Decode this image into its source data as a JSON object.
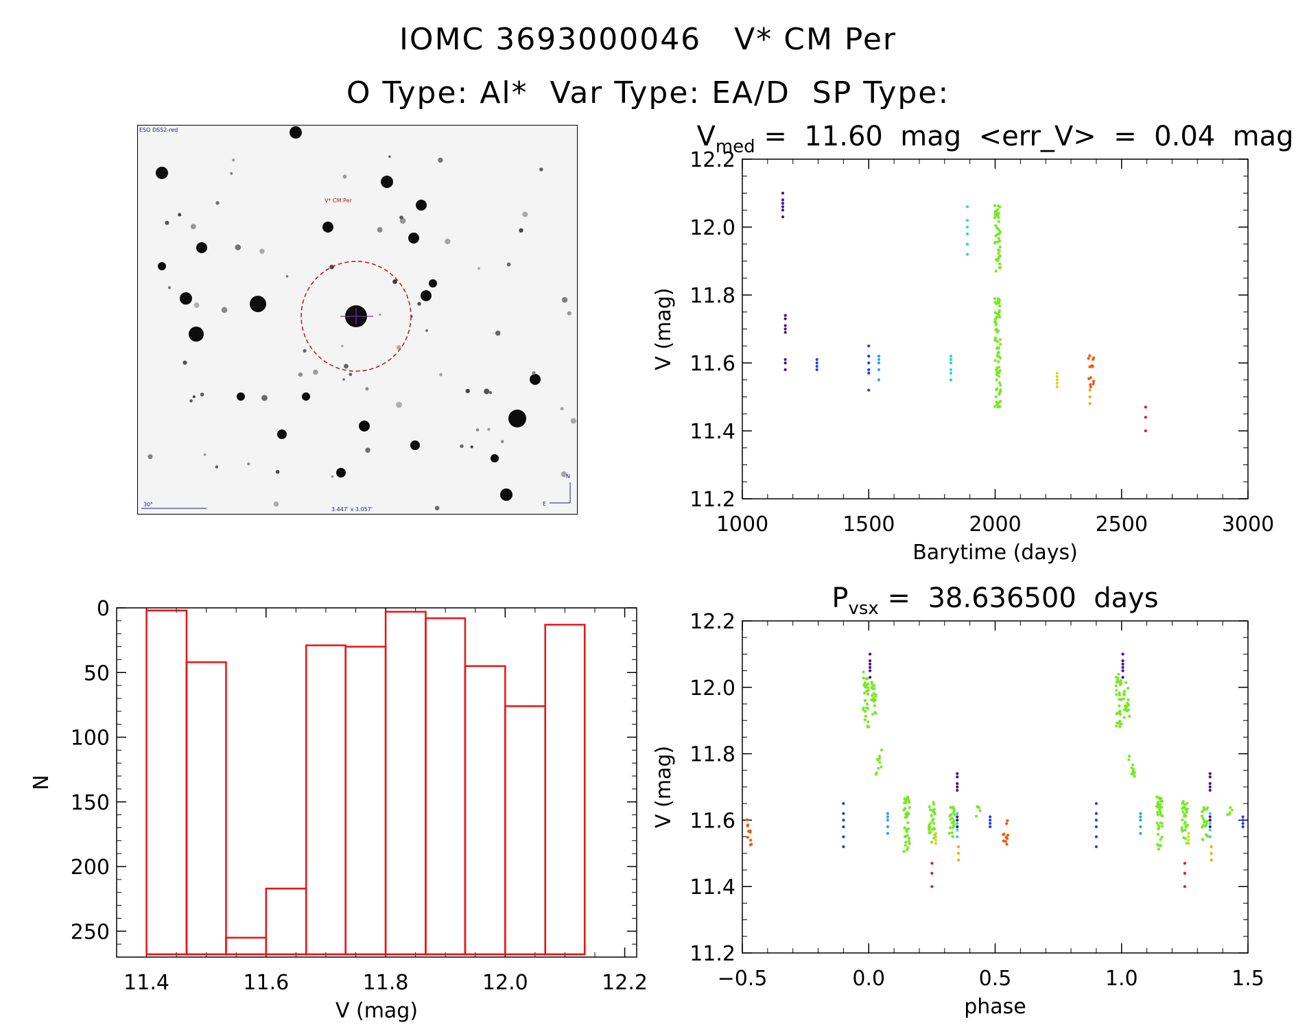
{
  "header": {
    "line1": "IOMC 3693000046   V* CM Per",
    "line2": "O Type: Al*  Var Type: EA/D  SP Type:"
  },
  "finder": {
    "survey_label": "ESO DSS2-red",
    "target_label": "V* CM Per",
    "scale_label": "30\"",
    "size_label": "3.447' x 3.057'",
    "north_label": "N",
    "east_label": "E"
  },
  "colors": {
    "histogram": "#ee1111",
    "palette": [
      "#4a0e8f",
      "#1f3fe0",
      "#2aa0f0",
      "#28d4d4",
      "#2ee39a",
      "#78e826",
      "#d6d61c",
      "#f2a800",
      "#ef5a12",
      "#e81818"
    ]
  },
  "chart_data": [
    {
      "type": "scatter",
      "id": "lightcurve",
      "title": "V_med = 11.60 mag <err_V> = 0.04 mag",
      "title_main": "V",
      "title_sub": "med",
      "title_rest": " =  11.60  mag  <err_V>  =  0.04  mag",
      "xlabel": "Barytime (days)",
      "ylabel": "V (mag)",
      "xlim": [
        1000,
        3000
      ],
      "ylim": [
        12.2,
        11.2
      ],
      "xticks": [
        1000,
        1500,
        2000,
        2500,
        3000
      ],
      "xtick_labels": [
        "1000",
        "1500",
        "2000",
        "2500",
        "3000"
      ],
      "yticks": [
        11.2,
        11.4,
        11.6,
        11.8,
        12.0,
        12.2
      ],
      "ytick_labels": [
        "11.2",
        "11.4",
        "11.6",
        "11.8",
        "12.0",
        "12.2"
      ],
      "groups": [
        {
          "x": 1160,
          "y": [
            12.03,
            12.05,
            12.06,
            12.07,
            12.08,
            12.1
          ],
          "c": 0
        },
        {
          "x": 1170,
          "y": [
            11.58,
            11.6,
            11.61,
            11.69,
            11.7,
            11.71,
            11.73,
            11.74
          ],
          "c": 0
        },
        {
          "x": 1295,
          "y": [
            11.58,
            11.59,
            11.6,
            11.61
          ],
          "c": 1
        },
        {
          "x": 1500,
          "y": [
            11.52,
            11.57,
            11.58,
            11.6,
            11.62,
            11.65
          ],
          "c": 1
        },
        {
          "x": 1540,
          "y": [
            11.55,
            11.58,
            11.6,
            11.61,
            11.62
          ],
          "c": 2
        },
        {
          "x": 1825,
          "y": [
            11.55,
            11.57,
            11.58,
            11.6,
            11.61,
            11.62
          ],
          "c": 3
        },
        {
          "x": 1890,
          "y": [
            11.92,
            11.95,
            11.98,
            12.0,
            12.02,
            12.06
          ],
          "c": 4
        },
        {
          "x": 2010,
          "range": [
            11.47,
            11.79
          ],
          "n": 70,
          "c": 5
        },
        {
          "x": 2010,
          "range": [
            11.87,
            12.07
          ],
          "n": 45,
          "c": 5
        },
        {
          "x": 2245,
          "y": [
            11.53,
            11.54,
            11.55,
            11.56,
            11.57
          ],
          "c": 6
        },
        {
          "x": 2375,
          "y": [
            11.48,
            11.5,
            11.52
          ],
          "c": 7
        },
        {
          "x": 2380,
          "range": [
            11.52,
            11.63
          ],
          "n": 14,
          "c": 8
        },
        {
          "x": 2595,
          "y": [
            11.4,
            11.44,
            11.47
          ],
          "c": 9
        }
      ]
    },
    {
      "type": "bar",
      "id": "histogram",
      "xlabel": "V (mag)",
      "ylabel": "N",
      "xlim": [
        11.35,
        12.22
      ],
      "ylim": [
        0,
        270
      ],
      "xticks": [
        11.4,
        11.6,
        11.8,
        12.0,
        12.2
      ],
      "xtick_labels": [
        "11.4",
        "11.6",
        "11.8",
        "12.0",
        "12.2"
      ],
      "yticks": [
        0,
        50,
        100,
        150,
        200,
        250
      ],
      "ytick_labels": [
        "0",
        "50",
        "100",
        "150",
        "200",
        "250"
      ],
      "bin_edges": [
        11.4,
        11.467,
        11.533,
        11.6,
        11.667,
        11.733,
        11.8,
        11.867,
        11.933,
        12.0,
        12.067,
        12.133
      ],
      "values": [
        2,
        42,
        255,
        217,
        29,
        30,
        3,
        8,
        45,
        76,
        13
      ]
    },
    {
      "type": "scatter",
      "id": "phased",
      "title": "P_vsx = 38.636500 days",
      "title_main": "P",
      "title_sub": "vsx",
      "title_rest": " =  38.636500  days",
      "xlabel": "phase",
      "ylabel": "V (mag)",
      "xlim": [
        -0.5,
        1.5
      ],
      "ylim": [
        12.2,
        11.2
      ],
      "xticks": [
        -0.5,
        0.0,
        0.5,
        1.0,
        1.5
      ],
      "xtick_labels": [
        "−0.5",
        "0.0",
        "0.5",
        "1.0",
        "1.5"
      ],
      "yticks": [
        11.2,
        11.4,
        11.6,
        11.8,
        12.0,
        12.2
      ],
      "ytick_labels": [
        "11.2",
        "11.4",
        "11.6",
        "11.8",
        "12.0",
        "12.2"
      ],
      "groups": [
        {
          "x": -0.47,
          "range": [
            11.52,
            11.62
          ],
          "n": 10,
          "c": 8
        },
        {
          "x": -0.1,
          "y": [
            11.52,
            11.55,
            11.58,
            11.6,
            11.62,
            11.65
          ],
          "c": 1
        },
        {
          "x": 0.075,
          "y": [
            11.56,
            11.58,
            11.6,
            11.61,
            11.62
          ],
          "c": 2
        },
        {
          "x": 0.35,
          "y": [
            11.55,
            11.57,
            11.59,
            11.6,
            11.62
          ],
          "c": 3
        },
        {
          "x": -0.01,
          "range": [
            11.88,
            12.05
          ],
          "n": 30,
          "c": 5
        },
        {
          "x": 0.02,
          "range": [
            11.9,
            12.02
          ],
          "n": 20,
          "c": 5
        },
        {
          "x": 0.04,
          "range": [
            11.72,
            11.83
          ],
          "n": 10,
          "c": 5
        },
        {
          "x": 0.15,
          "range": [
            11.5,
            11.67
          ],
          "n": 40,
          "c": 5
        },
        {
          "x": 0.25,
          "range": [
            11.53,
            11.66
          ],
          "n": 30,
          "c": 5
        },
        {
          "x": 0.33,
          "range": [
            11.54,
            11.64
          ],
          "n": 22,
          "c": 5
        },
        {
          "x": 0.43,
          "range": [
            11.6,
            11.65
          ],
          "n": 5,
          "c": 5
        },
        {
          "x": 0.005,
          "y": [
            12.03,
            12.05,
            12.06,
            12.07,
            12.08,
            12.1
          ],
          "c": 0
        },
        {
          "x": 0.35,
          "y": [
            11.58,
            11.6,
            11.61,
            11.69,
            11.7,
            11.71,
            11.73,
            11.74
          ],
          "c": 0
        },
        {
          "x": 0.48,
          "y": [
            11.58,
            11.59,
            11.6,
            11.61
          ],
          "c": 1
        },
        {
          "x": 0.265,
          "y": [
            11.53,
            11.54,
            11.55,
            11.56
          ],
          "c": 6
        },
        {
          "x": 0.355,
          "y": [
            11.48,
            11.5,
            11.52
          ],
          "c": 7
        },
        {
          "x": 0.25,
          "y": [
            11.4,
            11.44,
            11.47
          ],
          "c": 9
        },
        {
          "x": 0.54,
          "range": [
            11.52,
            11.62
          ],
          "n": 10,
          "c": 8
        },
        {
          "x": 0.9,
          "y": [
            11.52,
            11.55,
            11.58,
            11.6,
            11.62,
            11.65
          ],
          "c": 1
        },
        {
          "x": 1.075,
          "y": [
            11.56,
            11.58,
            11.6,
            11.61,
            11.62
          ],
          "c": 2
        },
        {
          "x": 1.35,
          "y": [
            11.55,
            11.57,
            11.59,
            11.6,
            11.62
          ],
          "c": 3
        },
        {
          "x": 0.99,
          "range": [
            11.88,
            12.05
          ],
          "n": 30,
          "c": 5
        },
        {
          "x": 1.02,
          "range": [
            11.9,
            12.02
          ],
          "n": 20,
          "c": 5
        },
        {
          "x": 1.04,
          "range": [
            11.72,
            11.83
          ],
          "n": 10,
          "c": 5
        },
        {
          "x": 1.15,
          "range": [
            11.5,
            11.67
          ],
          "n": 40,
          "c": 5
        },
        {
          "x": 1.25,
          "range": [
            11.53,
            11.66
          ],
          "n": 30,
          "c": 5
        },
        {
          "x": 1.33,
          "range": [
            11.54,
            11.64
          ],
          "n": 22,
          "c": 5
        },
        {
          "x": 1.43,
          "range": [
            11.6,
            11.65
          ],
          "n": 5,
          "c": 5
        },
        {
          "x": 1.005,
          "y": [
            12.03,
            12.05,
            12.06,
            12.07,
            12.08,
            12.1
          ],
          "c": 0
        },
        {
          "x": 1.35,
          "y": [
            11.58,
            11.6,
            11.61,
            11.69,
            11.7,
            11.71,
            11.73,
            11.74
          ],
          "c": 0
        },
        {
          "x": 1.48,
          "y": [
            11.58,
            11.59,
            11.6,
            11.61
          ],
          "c": 1
        },
        {
          "x": 1.265,
          "y": [
            11.53,
            11.54,
            11.55,
            11.56
          ],
          "c": 6
        },
        {
          "x": 1.355,
          "y": [
            11.48,
            11.5,
            11.52
          ],
          "c": 7
        },
        {
          "x": 1.25,
          "y": [
            11.4,
            11.44,
            11.47
          ],
          "c": 9
        }
      ]
    }
  ]
}
